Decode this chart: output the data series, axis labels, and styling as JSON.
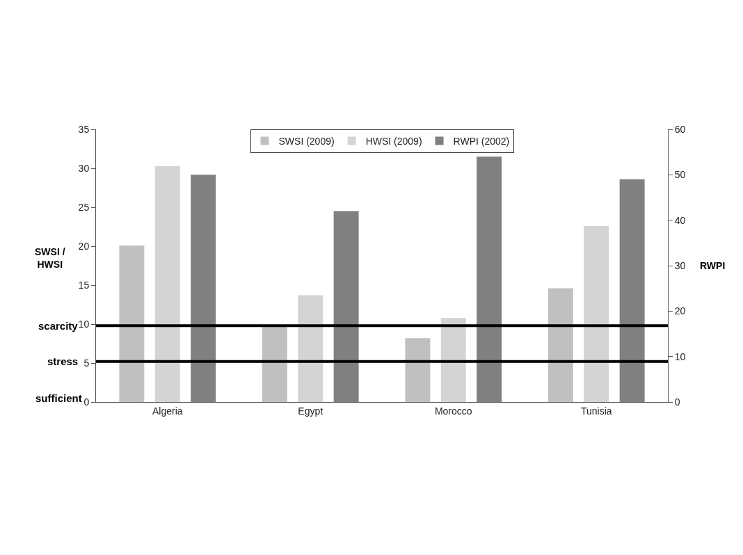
{
  "chart_data": {
    "type": "bar",
    "categories": [
      "Algeria",
      "Egypt",
      "Morocco",
      "Tunisia"
    ],
    "series": [
      {
        "name": "SWSI (2009)",
        "color": "#c0c0c0",
        "values": [
          20.1,
          9.8,
          8.2,
          14.6
        ]
      },
      {
        "name": "HWSI (2009)",
        "color": "#d4d4d4",
        "values": [
          30.3,
          13.7,
          10.8,
          22.6
        ]
      },
      {
        "name": "RWPI (2002)",
        "color": "#808080",
        "values": [
          50,
          42,
          54,
          49
        ],
        "axis": "y2"
      }
    ],
    "ylabel": "SWSI / HWSI",
    "y2label": "RWPI",
    "ylim": [
      0,
      35
    ],
    "yticks": [
      0,
      5,
      10,
      15,
      20,
      25,
      30,
      35
    ],
    "y2lim": [
      0,
      60
    ],
    "y2ticks": [
      0,
      10,
      20,
      30,
      40,
      50,
      60
    ],
    "ref_lines": [
      {
        "axis": "y",
        "value": 9.8,
        "label": "scarcity",
        "color": "#000000"
      },
      {
        "axis": "y",
        "value": 5.2,
        "label": "stress",
        "color": "#000000"
      }
    ],
    "annotations": [
      "sufficient"
    ],
    "grid": false,
    "legend": "top"
  }
}
